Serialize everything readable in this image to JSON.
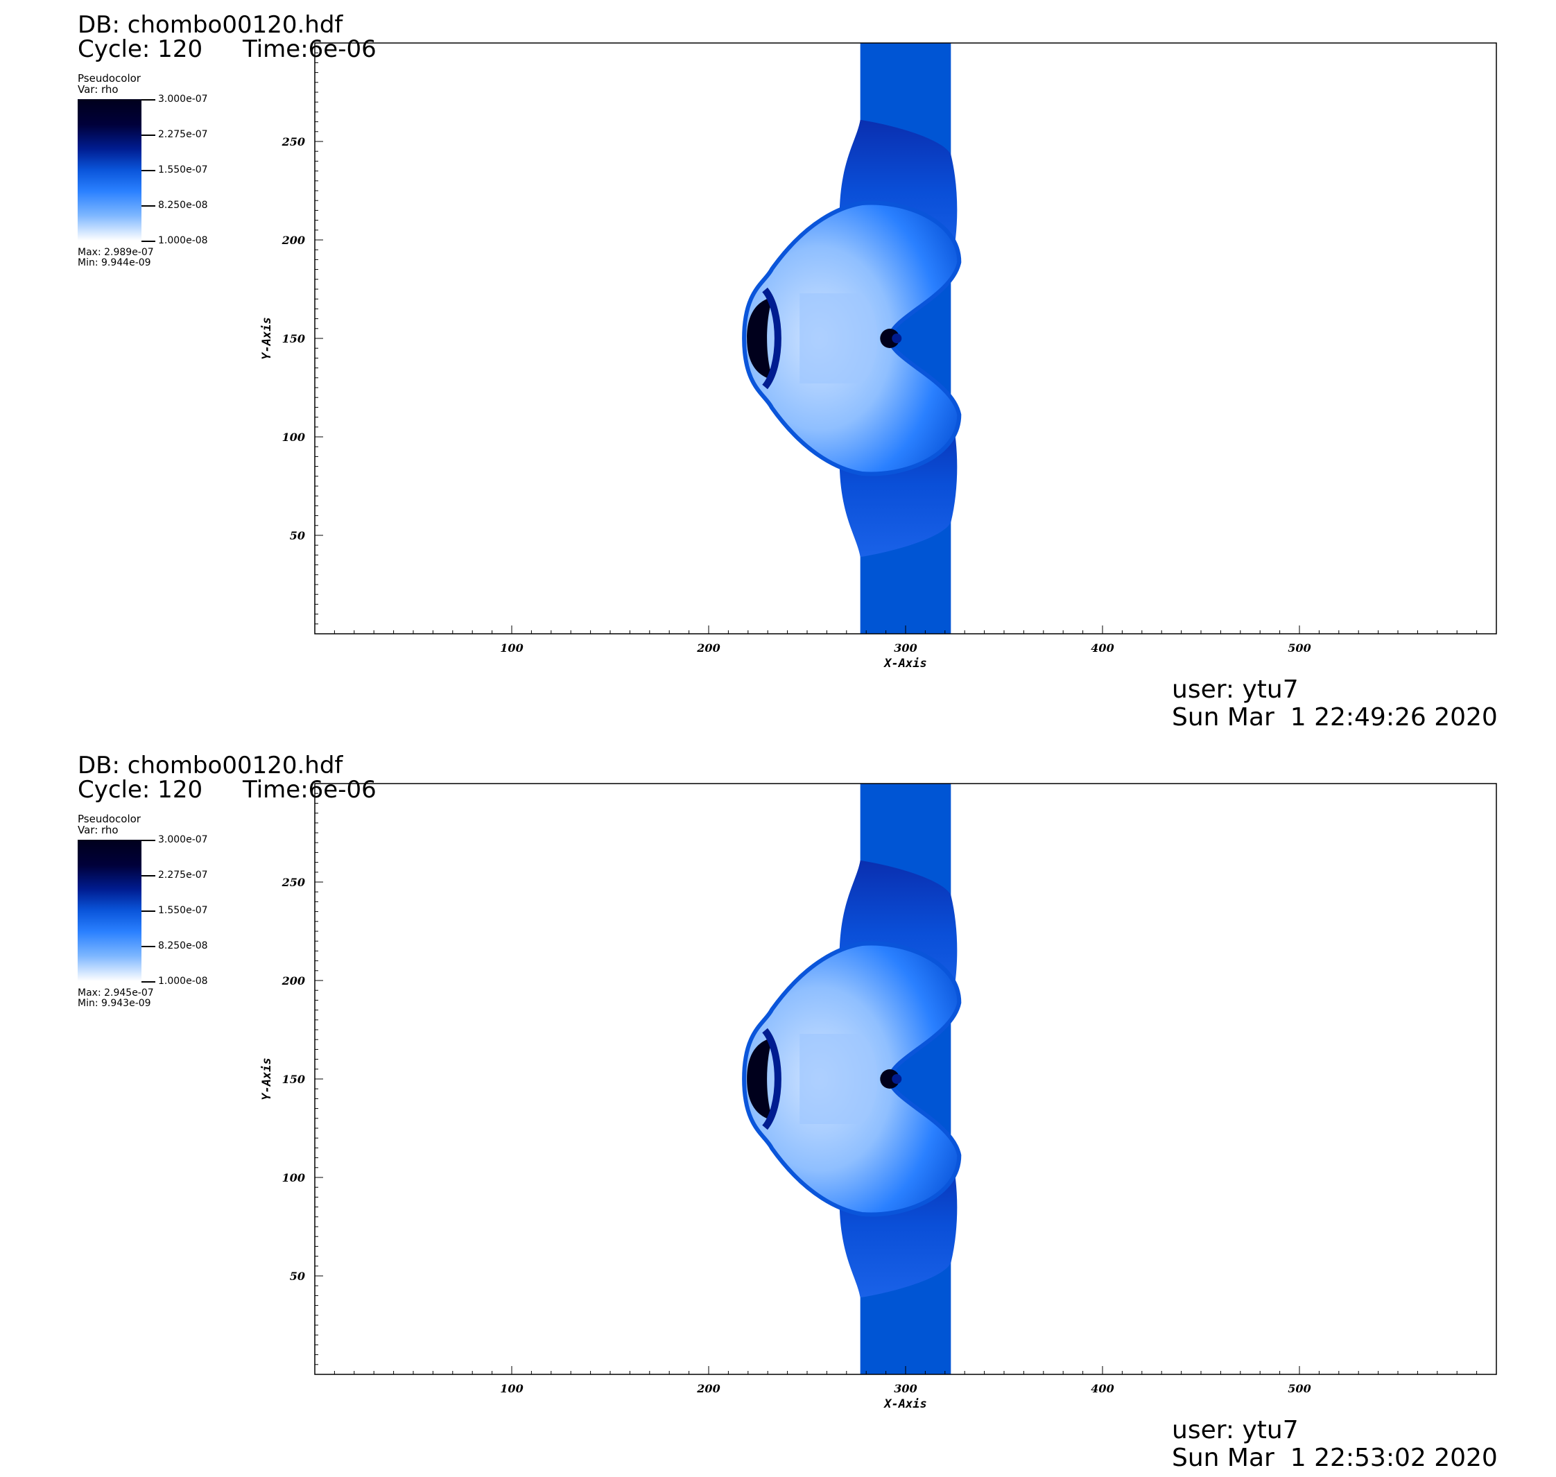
{
  "frames": [
    {
      "db": "DB: chombo00120.hdf",
      "cycle": "Cycle: 120",
      "time": "Time:6e-06",
      "legend": {
        "title": "Pseudocolor",
        "var": "Var: rho",
        "ticks": [
          "3.000e-07",
          "2.275e-07",
          "1.550e-07",
          "8.250e-08",
          "1.000e-08"
        ],
        "max": "Max:  2.989e-07",
        "min": "Min:  9.944e-09"
      },
      "user": "user: ytu7",
      "date": "Sun Mar  1 22:49:26 2020"
    },
    {
      "db": "DB: chombo00120.hdf",
      "cycle": "Cycle: 120",
      "time": "Time:6e-06",
      "legend": {
        "title": "Pseudocolor",
        "var": "Var: rho",
        "ticks": [
          "3.000e-07",
          "2.275e-07",
          "1.550e-07",
          "8.250e-08",
          "1.000e-08"
        ],
        "max": "Max:  2.945e-07",
        "min": "Min:  9.943e-09"
      },
      "user": "user: ytu7",
      "date": "Sun Mar  1 22:53:02 2020"
    }
  ],
  "chart_data": [
    {
      "type": "heatmap",
      "variable": "rho",
      "xlabel": "X-Axis",
      "ylabel": "Y-Axis",
      "xlim": [
        0,
        600
      ],
      "ylim": [
        0,
        300
      ],
      "xticks": [
        "100",
        "200",
        "300",
        "400",
        "500"
      ],
      "yticks": [
        "50",
        "100",
        "150",
        "200",
        "250"
      ],
      "colorbar_range": [
        1e-08,
        3e-07
      ],
      "colormap": [
        "#ffffff",
        "#2a80ff",
        "#0a55da",
        "#001c90",
        "#00001c"
      ],
      "features": {
        "vertical_band_x": [
          277,
          323
        ],
        "band_color": "#0055d4",
        "shock_center_y": 150,
        "shock_left_x": 218,
        "shock_top_y": 261,
        "shock_bottom_y": 39
      },
      "data_max": 2.989e-07,
      "data_min": 9.944e-09
    },
    {
      "type": "heatmap",
      "variable": "rho",
      "xlabel": "X-Axis",
      "ylabel": "Y-Axis",
      "xlim": [
        0,
        600
      ],
      "ylim": [
        0,
        300
      ],
      "xticks": [
        "100",
        "200",
        "300",
        "400",
        "500"
      ],
      "yticks": [
        "50",
        "100",
        "150",
        "200",
        "250"
      ],
      "colorbar_range": [
        1e-08,
        3e-07
      ],
      "colormap": [
        "#ffffff",
        "#2a80ff",
        "#0a55da",
        "#001c90",
        "#00001c"
      ],
      "features": {
        "vertical_band_x": [
          277,
          323
        ],
        "band_color": "#0055d4",
        "shock_center_y": 150,
        "shock_left_x": 218,
        "shock_top_y": 261,
        "shock_bottom_y": 39
      },
      "data_max": 2.945e-07,
      "data_min": 9.943e-09
    }
  ]
}
